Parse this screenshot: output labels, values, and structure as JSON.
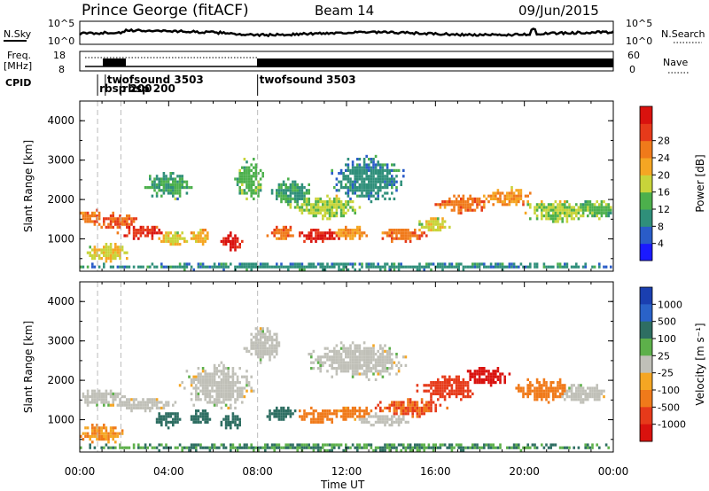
{
  "header": {
    "station": "Prince George (fitACF)",
    "beam": "Beam 14",
    "date": "09/Jun/2015"
  },
  "noise_panel": {
    "left_label": "N.Sky",
    "right_label": "N.Search",
    "left_ticks": [
      "10^5",
      "10^0"
    ],
    "right_ticks": [
      "10^5",
      "10^0"
    ]
  },
  "freq_panel": {
    "left_label": "Freq.",
    "left_units": "[MHz]",
    "left_ticks": [
      "18",
      "8"
    ],
    "right_label": "Nave",
    "right_ticks": [
      "60",
      "0"
    ]
  },
  "cpid_panel": {
    "label": "CPID",
    "programs": [
      {
        "name": "rbsp 200",
        "start_hour": 0.8
      },
      {
        "name": "twofsound 3503",
        "start_hour": 1.15
      },
      {
        "name": "rbsp 200",
        "start_hour": 1.85
      },
      {
        "name": "twofsound 3503",
        "start_hour": 8.0
      }
    ]
  },
  "chart_data": [
    {
      "type": "heatmap",
      "title": "",
      "xlabel": "",
      "ylabel": "Slant Range [km]",
      "xlim": [
        0,
        24
      ],
      "ylim": [
        180,
        4500
      ],
      "y_ticks": [
        "1000",
        "2000",
        "3000",
        "4000"
      ],
      "colorbar": {
        "label": "Power [dB]",
        "ticks": [
          "4",
          "8",
          "12",
          "16",
          "20",
          "24",
          "28"
        ],
        "colors": [
          "#1a1aff",
          "#2a5cc8",
          "#2f8f7a",
          "#4cb04c",
          "#c8d43a",
          "#f5a623",
          "#f07a1a",
          "#e63a1a",
          "#d9120e"
        ],
        "range": [
          0,
          30
        ]
      },
      "blobs": [
        {
          "x": 0.4,
          "y": 1550,
          "sx": 0.55,
          "sy": 170,
          "v": 22
        },
        {
          "x": 1.6,
          "y": 1450,
          "sx": 0.9,
          "sy": 170,
          "v": 23
        },
        {
          "x": 2.8,
          "y": 1180,
          "sx": 0.9,
          "sy": 150,
          "v": 26
        },
        {
          "x": 4.2,
          "y": 1000,
          "sx": 0.6,
          "sy": 170,
          "v": 16
        },
        {
          "x": 5.4,
          "y": 1050,
          "sx": 0.45,
          "sy": 180,
          "v": 18
        },
        {
          "x": 6.8,
          "y": 920,
          "sx": 0.4,
          "sy": 200,
          "v": 28
        },
        {
          "x": 9.0,
          "y": 1150,
          "sx": 0.6,
          "sy": 170,
          "v": 22
        },
        {
          "x": 10.7,
          "y": 1080,
          "sx": 0.9,
          "sy": 160,
          "v": 27
        },
        {
          "x": 12.2,
          "y": 1150,
          "sx": 0.7,
          "sy": 160,
          "v": 20
        },
        {
          "x": 14.5,
          "y": 1100,
          "sx": 0.9,
          "sy": 160,
          "v": 22
        },
        {
          "x": 15.9,
          "y": 1350,
          "sx": 0.6,
          "sy": 180,
          "v": 16
        },
        {
          "x": 17.2,
          "y": 1900,
          "sx": 1.1,
          "sy": 200,
          "v": 22
        },
        {
          "x": 19.2,
          "y": 2050,
          "sx": 0.9,
          "sy": 200,
          "v": 20
        },
        {
          "x": 21.5,
          "y": 1700,
          "sx": 1.3,
          "sy": 250,
          "v": 14
        },
        {
          "x": 23.2,
          "y": 1750,
          "sx": 0.8,
          "sy": 200,
          "v": 12
        },
        {
          "x": 1.2,
          "y": 650,
          "sx": 0.9,
          "sy": 200,
          "v": 16
        },
        {
          "x": 7.6,
          "y": 2500,
          "sx": 0.6,
          "sy": 450,
          "v": 12
        },
        {
          "x": 4.0,
          "y": 2350,
          "sx": 0.9,
          "sy": 300,
          "v": 10
        },
        {
          "x": 13.0,
          "y": 2500,
          "sx": 1.5,
          "sy": 500,
          "v": 8
        },
        {
          "x": 11.0,
          "y": 1800,
          "sx": 1.4,
          "sy": 250,
          "v": 14
        },
        {
          "x": 9.4,
          "y": 2200,
          "sx": 0.8,
          "sy": 300,
          "v": 10
        },
        {
          "x": 12.0,
          "y": 300,
          "sx": 12,
          "sy": 80,
          "v": 8
        }
      ]
    },
    {
      "type": "heatmap",
      "title": "",
      "xlabel": "Time UT",
      "ylabel": "Slant Range [km]",
      "xlim": [
        0,
        24
      ],
      "ylim": [
        180,
        4500
      ],
      "x_ticks": [
        "00:00",
        "04:00",
        "08:00",
        "12:00",
        "16:00",
        "20:00",
        "00:00"
      ],
      "y_ticks": [
        "1000",
        "2000",
        "3000",
        "4000"
      ],
      "colorbar": {
        "label": "Velocity [m s⁻¹]",
        "ticks": [
          "1000",
          "500",
          "100",
          "25",
          "-25",
          "-100",
          "-500",
          "-1000"
        ],
        "colors": [
          "#1a3fb0",
          "#2a62c8",
          "#2e6e62",
          "#5db04a",
          "#c0c0b8",
          "#f5a623",
          "#f07a1a",
          "#e63a1a",
          "#d9120e"
        ],
        "range": [
          -1000,
          1000
        ]
      },
      "blobs": [
        {
          "x": 0.8,
          "y": 1550,
          "sx": 1.0,
          "sy": 180,
          "v": 0
        },
        {
          "x": 2.8,
          "y": 1380,
          "sx": 1.3,
          "sy": 150,
          "v": 0
        },
        {
          "x": 6.2,
          "y": 1850,
          "sx": 1.4,
          "sy": 500,
          "v": 0
        },
        {
          "x": 8.2,
          "y": 2900,
          "sx": 0.7,
          "sy": 400,
          "v": 0
        },
        {
          "x": 3.9,
          "y": 1000,
          "sx": 0.6,
          "sy": 180,
          "v": 200
        },
        {
          "x": 5.4,
          "y": 1050,
          "sx": 0.5,
          "sy": 180,
          "v": 160
        },
        {
          "x": 6.8,
          "y": 950,
          "sx": 0.45,
          "sy": 200,
          "v": 140
        },
        {
          "x": 9.0,
          "y": 1150,
          "sx": 0.6,
          "sy": 170,
          "v": 150
        },
        {
          "x": 10.8,
          "y": 1100,
          "sx": 1.0,
          "sy": 170,
          "v": -150
        },
        {
          "x": 12.3,
          "y": 1150,
          "sx": 0.8,
          "sy": 160,
          "v": -120
        },
        {
          "x": 14.8,
          "y": 1300,
          "sx": 1.3,
          "sy": 200,
          "v": -400
        },
        {
          "x": 16.5,
          "y": 1800,
          "sx": 1.2,
          "sy": 280,
          "v": -700
        },
        {
          "x": 18.2,
          "y": 2100,
          "sx": 0.9,
          "sy": 220,
          "v": -800
        },
        {
          "x": 20.8,
          "y": 1750,
          "sx": 1.2,
          "sy": 250,
          "v": -200
        },
        {
          "x": 22.5,
          "y": 1650,
          "sx": 1.0,
          "sy": 220,
          "v": 0
        },
        {
          "x": 12.5,
          "y": 2500,
          "sx": 2.0,
          "sy": 400,
          "v": 0
        },
        {
          "x": 1.0,
          "y": 650,
          "sx": 0.9,
          "sy": 200,
          "v": -100
        },
        {
          "x": 13.5,
          "y": 1000,
          "sx": 1.2,
          "sy": 150,
          "v": 0
        },
        {
          "x": 12.0,
          "y": 300,
          "sx": 12,
          "sy": 80,
          "v": 60
        }
      ]
    }
  ]
}
